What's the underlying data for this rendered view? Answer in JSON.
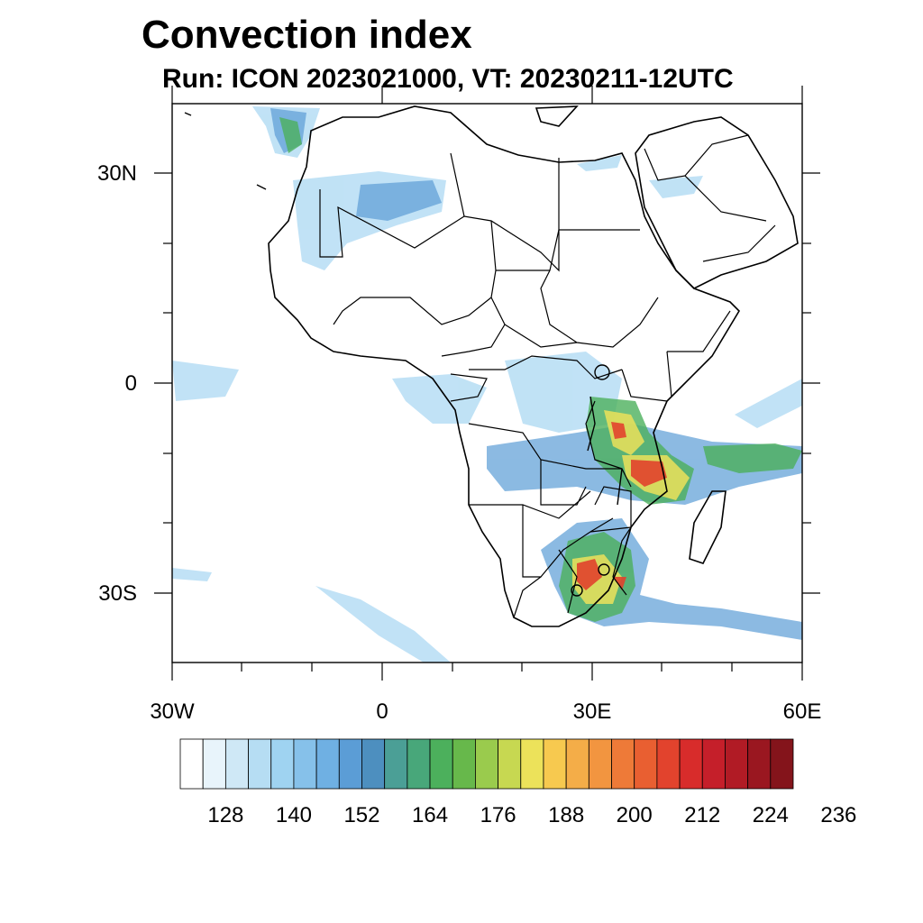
{
  "title": "Convection index",
  "subtitle": "Run: ICON 2023021000,  VT: 20230211-12UTC",
  "axes": {
    "lon_ticks": [
      {
        "label": "30W",
        "lon": -30
      },
      {
        "label": "0",
        "lon": 0
      },
      {
        "label": "30E",
        "lon": 30
      },
      {
        "label": "60E",
        "lon": 60
      }
    ],
    "lat_ticks": [
      {
        "label": "30N",
        "lat": 30
      },
      {
        "label": "0",
        "lat": 0
      },
      {
        "label": "30S",
        "lat": -30
      }
    ],
    "lon_range": [
      -30,
      60
    ],
    "lat_range": [
      -40,
      40
    ]
  },
  "colorbar": {
    "labels": [
      "128",
      "140",
      "152",
      "164",
      "176",
      "188",
      "200",
      "212",
      "224",
      "236"
    ],
    "colors": [
      "#ffffff",
      "#e8f4fb",
      "#cfe8f6",
      "#b6ddf3",
      "#9fd3f1",
      "#86c1ea",
      "#6fb0e3",
      "#5b9dd6",
      "#4d8fbf",
      "#4b9f96",
      "#48a77a",
      "#4cb05c",
      "#67b84b",
      "#9acb4d",
      "#c7d851",
      "#ece25a",
      "#f7c94f",
      "#f4ad48",
      "#f29540",
      "#ee7a38",
      "#e95f31",
      "#e2432d",
      "#d82c2b",
      "#c51f2a",
      "#b11b25",
      "#9a1720",
      "#84141b"
    ]
  }
}
